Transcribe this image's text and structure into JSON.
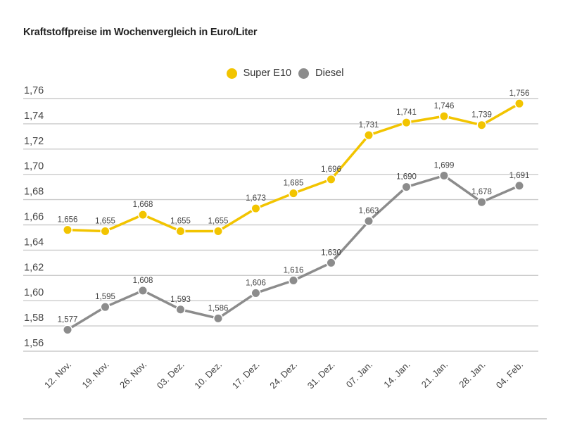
{
  "chart_data": {
    "type": "line",
    "title": "Kraftstoffpreise im Wochenvergleich in Euro/Liter",
    "xlabel": "",
    "ylabel": "",
    "categories": [
      "12. Nov.",
      "19. Nov.",
      "26. Nov.",
      "03. Dez.",
      "10. Dez.",
      "17. Dez.",
      "24. Dez.",
      "31. Dez.",
      "07. Jan.",
      "14. Jan.",
      "21. Jan.",
      "28. Jan.",
      "04. Feb."
    ],
    "series": [
      {
        "name": "Super E10",
        "color": "#f2c400",
        "values": [
          1.656,
          1.655,
          1.668,
          1.655,
          1.655,
          1.673,
          1.685,
          1.696,
          1.731,
          1.741,
          1.746,
          1.739,
          1.756
        ],
        "labels": [
          "1,656",
          "1,655",
          "1,668",
          "1,655",
          "1,655",
          "1,673",
          "1,685",
          "1,696",
          "1,731",
          "1,741",
          "1,746",
          "1,739",
          "1,756"
        ]
      },
      {
        "name": "Diesel",
        "color": "#8c8c8c",
        "values": [
          1.577,
          1.595,
          1.608,
          1.593,
          1.586,
          1.606,
          1.616,
          1.63,
          1.663,
          1.69,
          1.699,
          1.678,
          1.691
        ],
        "labels": [
          "1,577",
          "1,595",
          "1,608",
          "1,593",
          "1,586",
          "1,606",
          "1,616",
          "1,630",
          "1,663",
          "1,690",
          "1,699",
          "1,678",
          "1,691"
        ]
      }
    ],
    "ylim": [
      1.56,
      1.76
    ],
    "yticks": [
      1.56,
      1.58,
      1.6,
      1.62,
      1.64,
      1.66,
      1.68,
      1.7,
      1.72,
      1.74,
      1.76
    ],
    "ytick_labels": [
      "1,56",
      "1,58",
      "1,60",
      "1,62",
      "1,64",
      "1,66",
      "1,68",
      "1,70",
      "1,72",
      "1,74",
      "1,76"
    ],
    "grid": true,
    "legend_position": "top-center"
  },
  "legend": {
    "items": [
      {
        "label": "Super E10",
        "color": "#f2c400"
      },
      {
        "label": "Diesel",
        "color": "#8c8c8c"
      }
    ]
  },
  "colors": {
    "gridline": "#cccccc",
    "text": "#333333"
  }
}
